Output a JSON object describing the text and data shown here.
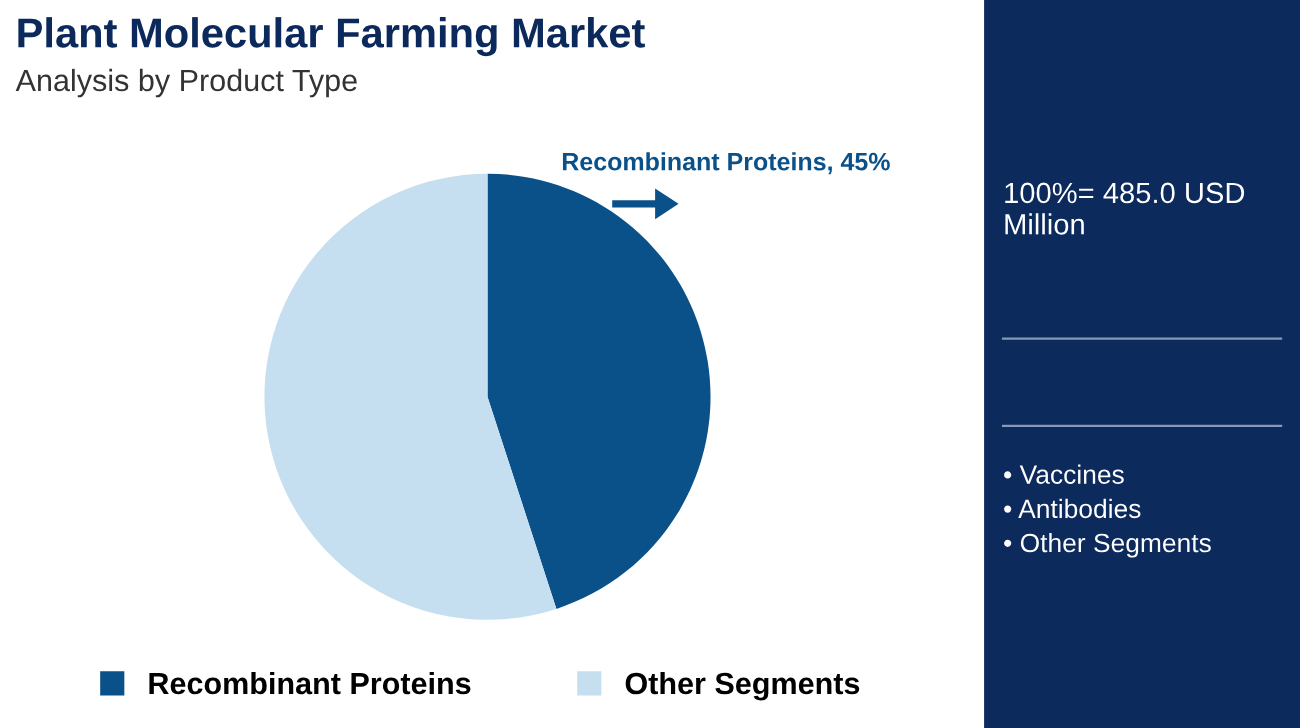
{
  "chart_data": [
    {
      "type": "pie",
      "title": "Plant Molecular Farming Market",
      "subtitle": "Analysis by Product Type",
      "categories": [
        "Recombinant Proteins",
        "Other Segments"
      ],
      "values": [
        45,
        55
      ],
      "colors": [
        "#0b5189",
        "#c6dff0"
      ],
      "annotations": [
        "Recombinant Proteins, 45%"
      ],
      "legend": "bottom"
    },
    {
      "type": "other",
      "annotations": [
        "100%= 485.0 USD Million",
        "• Vaccines",
        "• Antibodies",
        "• Other Segments"
      ]
    }
  ]
}
